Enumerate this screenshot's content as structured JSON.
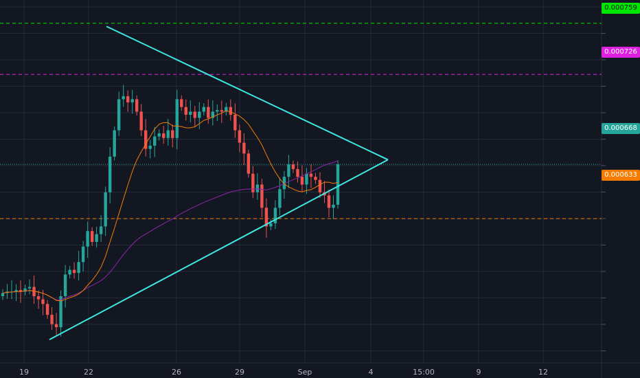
{
  "colors": {
    "background": "#131722",
    "grid": "#363c4e",
    "up": "#26a69a",
    "down": "#ef5350",
    "triangle": "#3ee8e0",
    "ma_short": "#f57c00",
    "ma_long": "#8e24aa",
    "level_top": "#00e600",
    "level_mid": "#e020e0",
    "level_support": "#f57c00"
  },
  "price_tags": {
    "top": "0.000759",
    "mid": "0.000726",
    "last": "0.000668",
    "support": "0.000633"
  },
  "x_axis_labels": [
    "19",
    "22",
    "26",
    "29",
    "Sep",
    "4",
    "15:00",
    "9",
    "12"
  ],
  "chart_data": {
    "type": "candlestick",
    "title": "",
    "xlabel": "",
    "ylabel": "",
    "ylim": [
      0.00054,
      0.000774
    ],
    "horizontal_levels": [
      {
        "value": 0.000759,
        "style": "dashed",
        "color": "#00e600"
      },
      {
        "value": 0.000726,
        "style": "dashed",
        "color": "#e020e0"
      },
      {
        "value": 0.000668,
        "style": "dotted",
        "color": "#26a69a"
      },
      {
        "value": 0.000633,
        "style": "dashed",
        "color": "#f57c00"
      }
    ],
    "triangle": {
      "upper_line": [
        [
          0.0,
          0.000757
        ],
        [
          1.0,
          0.000671
        ]
      ],
      "lower_line": [
        [
          0.0,
          0.000555
        ],
        [
          1.0,
          0.000671
        ]
      ]
    },
    "candles_close": [
      0.000585,
      0.000586,
      0.000586,
      0.000587,
      0.000586,
      0.000588,
      0.000589,
      0.000583,
      0.000581,
      0.000578,
      0.000571,
      0.000565,
      0.000563,
      0.000583,
      0.000597,
      0.0006,
      0.000598,
      0.000605,
      0.000615,
      0.000625,
      0.000618,
      0.000623,
      0.000628,
      0.00065,
      0.000673,
      0.00069,
      0.00071,
      0.000712,
      0.000708,
      0.00071,
      0.000702,
      0.00069,
      0.000678,
      0.00068,
      0.000686,
      0.000688,
      0.000685,
      0.00069,
      0.000685,
      0.00071,
      0.000705,
      0.0007,
      0.000702,
      0.000698,
      0.000702,
      0.000705,
      0.000698,
      0.000702,
      0.000703,
      0.000702,
      0.000705,
      0.0007,
      0.00069,
      0.000682,
      0.000675,
      0.000662,
      0.00065,
      0.000655,
      0.00064,
      0.000628,
      0.00063,
      0.00064,
      0.000652,
      0.00066,
      0.000668,
      0.000665,
      0.00066,
      0.000655,
      0.000662,
      0.00066,
      0.000658,
      0.00065,
      0.000648,
      0.00064,
      0.000642,
      0.000668
    ],
    "ma_short_label": "",
    "ma_long_label": ""
  }
}
